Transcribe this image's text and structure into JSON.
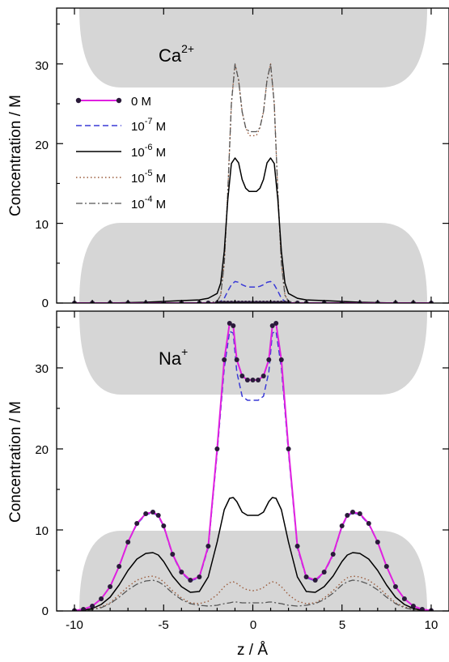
{
  "chart_data": [
    {
      "type": "line",
      "panel": "top",
      "ion_label": "Ca",
      "ion_charge": "2+",
      "ylabel": "Concentration / M",
      "xlim": [
        -11,
        11
      ],
      "ylim": [
        0,
        37
      ],
      "yticks": [
        "0",
        "10",
        "20",
        "30"
      ],
      "legend_position": "top-left",
      "legend": [
        {
          "base": "0 M",
          "exp": "",
          "unit": ""
        },
        {
          "base": "10",
          "exp": "-7",
          "unit": " M"
        },
        {
          "base": "10",
          "exp": "-6",
          "unit": " M"
        },
        {
          "base": "10",
          "exp": "-5",
          "unit": " M"
        },
        {
          "base": "10",
          "exp": "-4",
          "unit": " M"
        }
      ],
      "x": [
        -10,
        -9,
        -8,
        -7,
        -6,
        -5,
        -4,
        -3,
        -2.5,
        -2,
        -1.8,
        -1.6,
        -1.4,
        -1.2,
        -1,
        -0.8,
        -0.6,
        -0.4,
        -0.2,
        0,
        0.2,
        0.4,
        0.6,
        0.8,
        1,
        1.2,
        1.4,
        1.6,
        1.8,
        2,
        2.5,
        3,
        4,
        5,
        6,
        7,
        8,
        9,
        10
      ],
      "series": [
        {
          "key": "0M",
          "color": "#e020e0",
          "values": [
            0,
            0,
            0,
            0,
            0,
            0,
            0,
            0,
            0,
            0,
            0,
            0,
            0,
            0,
            0,
            0,
            0,
            0,
            0,
            0,
            0,
            0,
            0,
            0,
            0,
            0,
            0,
            0,
            0,
            0,
            0,
            0,
            0,
            0,
            0,
            0,
            0,
            0,
            0
          ]
        },
        {
          "key": "1e-7",
          "color": "#3a3ad6",
          "values": [
            0,
            0,
            0,
            0,
            0,
            0,
            0,
            0,
            0,
            0.05,
            0.2,
            0.6,
            1.5,
            2.3,
            2.7,
            2.6,
            2.3,
            2.1,
            2.0,
            2.0,
            2.0,
            2.1,
            2.3,
            2.6,
            2.7,
            2.3,
            1.5,
            0.6,
            0.2,
            0.05,
            0,
            0,
            0,
            0,
            0,
            0,
            0,
            0,
            0
          ]
        },
        {
          "key": "1e-6",
          "color": "#000000",
          "values": [
            0,
            0,
            0,
            0.05,
            0.1,
            0.2,
            0.3,
            0.4,
            0.6,
            1.2,
            2.5,
            6.5,
            13,
            17.5,
            18.2,
            17.6,
            15.5,
            14.4,
            14.0,
            14.0,
            14.0,
            14.4,
            15.5,
            17.6,
            18.2,
            17.5,
            13,
            6.5,
            2.5,
            1.2,
            0.6,
            0.4,
            0.3,
            0.2,
            0.1,
            0.05,
            0,
            0,
            0
          ]
        },
        {
          "key": "1e-5",
          "color": "#9a5a3a",
          "values": [
            0,
            0,
            0,
            0,
            0,
            0,
            0,
            0,
            0,
            0.2,
            1,
            5,
            14,
            25,
            30,
            28,
            24,
            22,
            21,
            21,
            21,
            22,
            24,
            28,
            30,
            25,
            14,
            5,
            1,
            0.2,
            0,
            0,
            0,
            0,
            0,
            0,
            0,
            0,
            0
          ]
        },
        {
          "key": "1e-4",
          "color": "#555555",
          "values": [
            0,
            0,
            0,
            0,
            0,
            0,
            0,
            0,
            0,
            0.2,
            1,
            5,
            14,
            25,
            30,
            28,
            24,
            22,
            21.5,
            21.5,
            21.5,
            22,
            24,
            28,
            30,
            25,
            14,
            5,
            1,
            0.2,
            0,
            0,
            0,
            0,
            0,
            0,
            0,
            0,
            0
          ]
        }
      ]
    },
    {
      "type": "line",
      "panel": "bottom",
      "ion_label": "Na",
      "ion_charge": "+",
      "ylabel": "Concentration / M",
      "xlabel": "z / Å",
      "xlim": [
        -11,
        11
      ],
      "ylim": [
        0,
        37
      ],
      "yticks": [
        "0",
        "10",
        "20",
        "30"
      ],
      "xticks": [
        "-10",
        "-5",
        "0",
        "5",
        "10"
      ],
      "x": [
        -10,
        -9.5,
        -9,
        -8.5,
        -8,
        -7.5,
        -7,
        -6.5,
        -6,
        -5.6,
        -5.3,
        -5,
        -4.5,
        -4,
        -3.5,
        -3,
        -2.5,
        -2,
        -1.6,
        -1.3,
        -1.1,
        -0.9,
        -0.6,
        -0.3,
        0,
        0.3,
        0.6,
        0.9,
        1.1,
        1.3,
        1.6,
        2,
        2.5,
        3,
        3.5,
        4,
        4.5,
        5,
        5.3,
        5.6,
        6,
        6.5,
        7,
        7.5,
        8,
        8.5,
        9,
        9.5,
        10
      ],
      "series": [
        {
          "key": "0M",
          "color": "#e020e0",
          "values": [
            0.05,
            0.2,
            0.6,
            1.5,
            3,
            5.5,
            8.5,
            10.8,
            12,
            12.2,
            11.8,
            10.5,
            7,
            4.8,
            3.8,
            4.2,
            8,
            20,
            31,
            35.5,
            35.2,
            31,
            29,
            28.5,
            28.5,
            28.5,
            29,
            31,
            35.2,
            35.5,
            31,
            20,
            8,
            4.2,
            3.8,
            4.8,
            7,
            10.5,
            11.8,
            12.2,
            12,
            10.8,
            8.5,
            5.5,
            3,
            1.5,
            0.6,
            0.2,
            0.05
          ]
        },
        {
          "key": "1e-7",
          "color": "#3a3ad6",
          "values": [
            0.05,
            0.2,
            0.6,
            1.5,
            3,
            5.5,
            8.5,
            10.7,
            11.9,
            12.1,
            11.7,
            10.4,
            6.9,
            4.7,
            3.7,
            4.1,
            7.8,
            19.5,
            30,
            34.5,
            34.3,
            29.5,
            26.5,
            26,
            26,
            26,
            26.5,
            29.5,
            34.3,
            34.5,
            30,
            19.5,
            7.8,
            4.1,
            3.7,
            4.7,
            6.9,
            10.4,
            11.7,
            12.1,
            11.9,
            10.7,
            8.5,
            5.5,
            3,
            1.5,
            0.6,
            0.2,
            0.05
          ]
        },
        {
          "key": "1e-6",
          "color": "#000000",
          "values": [
            0.02,
            0.1,
            0.3,
            0.8,
            1.7,
            3.2,
            5,
            6.4,
            7.1,
            7.2,
            6.9,
            6.1,
            4.3,
            3,
            2.3,
            2.4,
            4.2,
            8.5,
            12.5,
            13.9,
            14,
            13.5,
            12.2,
            11.8,
            11.8,
            11.8,
            12.2,
            13.5,
            14,
            13.9,
            12.5,
            8.5,
            4.2,
            2.4,
            2.3,
            3,
            4.3,
            6.1,
            6.9,
            7.2,
            7.1,
            6.4,
            5,
            3.2,
            1.7,
            0.8,
            0.3,
            0.1,
            0.02
          ]
        },
        {
          "key": "1e-5",
          "color": "#9a5a3a",
          "values": [
            0.01,
            0.05,
            0.2,
            0.5,
            1,
            2,
            3,
            3.8,
            4.2,
            4.3,
            4.1,
            3.6,
            2.5,
            1.6,
            1,
            0.9,
            1.2,
            2,
            3,
            3.5,
            3.6,
            3.4,
            2.9,
            2.6,
            2.5,
            2.6,
            2.9,
            3.4,
            3.6,
            3.5,
            3,
            2,
            1.2,
            0.9,
            1,
            1.6,
            2.5,
            3.6,
            4.1,
            4.3,
            4.2,
            3.8,
            3,
            2,
            1,
            0.5,
            0.2,
            0.05,
            0.01
          ]
        },
        {
          "key": "1e-4",
          "color": "#555555",
          "values": [
            0.01,
            0.05,
            0.15,
            0.4,
            0.9,
            1.7,
            2.6,
            3.3,
            3.7,
            3.8,
            3.6,
            3.2,
            2.2,
            1.4,
            0.9,
            0.7,
            0.6,
            0.7,
            0.9,
            1,
            1.1,
            1.1,
            1,
            1,
            1,
            1,
            1,
            1.1,
            1.1,
            1,
            0.9,
            0.7,
            0.6,
            0.7,
            0.9,
            1.4,
            2.2,
            3.2,
            3.6,
            3.8,
            3.7,
            3.3,
            2.6,
            1.7,
            0.9,
            0.4,
            0.15,
            0.05,
            0.01
          ]
        }
      ]
    }
  ]
}
